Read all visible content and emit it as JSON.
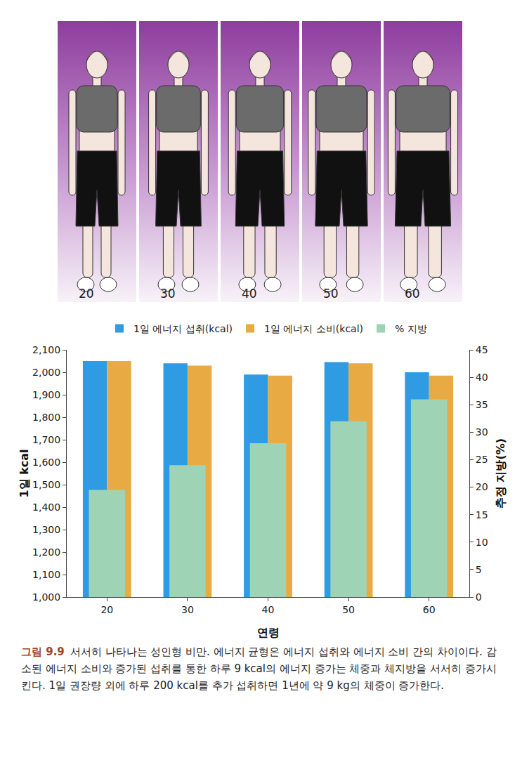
{
  "chart_data": {
    "type": "bar",
    "categories": [
      "20",
      "30",
      "40",
      "50",
      "60"
    ],
    "series": [
      {
        "name": "1일 에너지 섭취(kcal)",
        "color": "#2e9be2",
        "values": [
          2050,
          2040,
          1990,
          2045,
          2000
        ]
      },
      {
        "name": "1일 에너지 소비(kcal)",
        "color": "#e8aa43",
        "values": [
          2050,
          2030,
          1985,
          2040,
          1985
        ]
      },
      {
        "name": "% 지방",
        "color": "#9fd3b6",
        "values": [
          19.5,
          24,
          28,
          32,
          36
        ],
        "axis": "y2"
      }
    ],
    "xlabel": "연령",
    "ylabel": "1일 kcal",
    "y2label": "추정 지방(%)",
    "ylim": [
      1000,
      2100
    ],
    "yticks": [
      {
        "value": 1000,
        "label": "1,000"
      },
      {
        "value": 1100,
        "label": "1,100"
      },
      {
        "value": 1200,
        "label": "1,200"
      },
      {
        "value": 1300,
        "label": "1,300"
      },
      {
        "value": 1400,
        "label": "1,400"
      },
      {
        "value": 1500,
        "label": "1,500"
      },
      {
        "value": 1600,
        "label": "1,600"
      },
      {
        "value": 1700,
        "label": "1,700"
      },
      {
        "value": 1800,
        "label": "1,800"
      },
      {
        "value": 1900,
        "label": "1,900"
      },
      {
        "value": 2000,
        "label": "2,000"
      },
      {
        "value": 2100,
        "label": "2,100"
      }
    ],
    "y2lim": [
      0,
      45
    ],
    "y2ticks": [
      0,
      5,
      10,
      15,
      20,
      25,
      30,
      35,
      40,
      45
    ],
    "grid": false,
    "legend": "top"
  },
  "illustration_labels": [
    "20",
    "30",
    "40",
    "50",
    "60"
  ],
  "caption": {
    "label": "그림 9.9",
    "text": "서서히 나타나는 성인형 비만. 에너지 균형은 에너지 섭취와 에너지 소비 간의 차이이다. 감소된 에너지 소비와 증가된 섭취를 통한 하루 9 kcal의 에너지 증가는 체중과 체지방을 서서히 증가시킨다. 1일 권장량 외에 하루 200 kcal를 추가 섭취하면 1년에 약 9 kg의 체중이 증가한다."
  }
}
